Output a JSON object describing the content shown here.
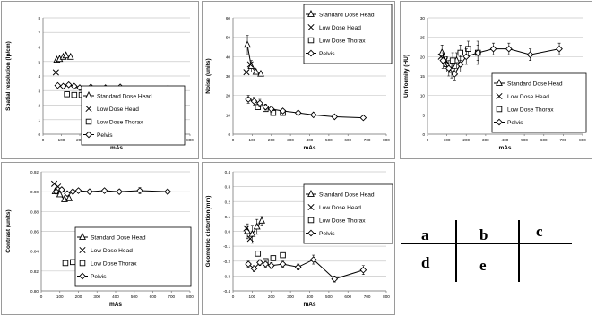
{
  "chart_data": [
    {
      "type": "line",
      "xlabel": "mAs",
      "ylabel": "Spatial resolution (lp/cm)",
      "xlim": [
        0,
        800
      ],
      "ylim": [
        0,
        8
      ],
      "xticks": [
        0,
        100,
        200,
        300,
        400,
        500,
        600,
        700,
        800
      ],
      "yticks": [
        0,
        1,
        2,
        3,
        4,
        5,
        6,
        7,
        8
      ],
      "grid": "horizontal",
      "legend_position": "bottom-right",
      "series": [
        {
          "name": "Standard Dose Head",
          "marker": "triangle",
          "connected": true,
          "x": [
            75,
            90,
            110,
            125,
            150
          ],
          "y": [
            5.1,
            5.15,
            5.3,
            5.4,
            5.3
          ]
        },
        {
          "name": "Low Dose Head",
          "marker": "x",
          "connected": false,
          "x": [
            70
          ],
          "y": [
            4.25
          ]
        },
        {
          "name": "Low Dose Thorax",
          "marker": "square",
          "connected": false,
          "x": [
            130,
            170,
            210,
            260
          ],
          "y": [
            2.75,
            2.7,
            2.7,
            2.7
          ]
        },
        {
          "name": "Pelvis",
          "marker": "diamond",
          "connected": true,
          "x": [
            80,
            110,
            140,
            170,
            200,
            260,
            340,
            420,
            530,
            680
          ],
          "y": [
            3.35,
            3.3,
            3.4,
            3.3,
            3.2,
            3.25,
            3.2,
            3.25,
            3.1,
            3.15
          ]
        }
      ]
    },
    {
      "type": "line",
      "xlabel": "mAs",
      "ylabel": "Noise (units)",
      "xlim": [
        0,
        800
      ],
      "ylim": [
        0,
        60
      ],
      "xticks": [
        0,
        100,
        200,
        300,
        400,
        500,
        600,
        700,
        800
      ],
      "yticks": [
        0,
        10,
        20,
        30,
        40,
        50,
        60
      ],
      "grid": "horizontal",
      "legend_position": "top-right",
      "series": [
        {
          "name": "Standard Dose Head",
          "marker": "triangle",
          "connected": true,
          "x": [
            75,
            95,
            120,
            145
          ],
          "y": [
            46,
            35,
            32,
            31
          ],
          "err": [
            5,
            3,
            0,
            0
          ]
        },
        {
          "name": "Low Dose Head",
          "marker": "x",
          "connected": false,
          "x": [
            70,
            90
          ],
          "y": [
            32,
            36
          ]
        },
        {
          "name": "Low Dose Thorax",
          "marker": "square",
          "connected": false,
          "x": [
            130,
            170,
            210,
            260
          ],
          "y": [
            14,
            13,
            11,
            11
          ]
        },
        {
          "name": "Pelvis",
          "marker": "diamond",
          "connected": true,
          "x": [
            80,
            110,
            140,
            170,
            200,
            260,
            340,
            420,
            530,
            680
          ],
          "y": [
            18,
            17,
            16,
            14,
            13,
            12,
            11,
            10,
            9,
            8.5
          ],
          "err": [
            2,
            2,
            2,
            1.5,
            1.5,
            1,
            1,
            1,
            1,
            1
          ]
        }
      ]
    },
    {
      "type": "line",
      "xlabel": "mAs",
      "ylabel": "Uniformity (HU)",
      "xlim": [
        0,
        800
      ],
      "ylim": [
        0,
        30
      ],
      "xticks": [
        0,
        100,
        200,
        300,
        400,
        500,
        600,
        700,
        800
      ],
      "yticks": [
        0,
        5,
        10,
        15,
        20,
        25,
        30
      ],
      "grid": "horizontal",
      "legend_position": "bottom-right",
      "series": [
        {
          "name": "Standard Dose Head",
          "marker": "triangle",
          "connected": true,
          "x": [
            75,
            100,
            125,
            150
          ],
          "y": [
            21,
            18,
            16.5,
            19
          ],
          "err": [
            2,
            2,
            2,
            2
          ]
        },
        {
          "name": "Low Dose Head",
          "marker": "x",
          "connected": false,
          "x": [
            70,
            90
          ],
          "y": [
            20,
            19
          ]
        },
        {
          "name": "Low Dose Thorax",
          "marker": "square",
          "connected": false,
          "x": [
            130,
            170,
            210,
            260
          ],
          "y": [
            19,
            21,
            22,
            21
          ],
          "err": [
            2,
            2,
            2,
            3
          ]
        },
        {
          "name": "Pelvis",
          "marker": "diamond",
          "connected": true,
          "x": [
            80,
            110,
            140,
            170,
            200,
            260,
            340,
            420,
            530,
            680
          ],
          "y": [
            19,
            17,
            15.5,
            18,
            20,
            21,
            22,
            22,
            20.5,
            22
          ],
          "err": [
            2,
            2,
            1.5,
            2,
            2,
            2,
            1.5,
            1.5,
            1.5,
            1.5
          ]
        }
      ]
    },
    {
      "type": "line",
      "xlabel": "mAs",
      "ylabel": "Contrast (units)",
      "xlim": [
        0,
        800
      ],
      "ylim": [
        0.8,
        0.92
      ],
      "xticks": [
        0,
        100,
        200,
        300,
        400,
        500,
        600,
        700,
        800
      ],
      "yticks": [
        0.8,
        0.82,
        0.84,
        0.86,
        0.88,
        0.9,
        0.92
      ],
      "grid": "horizontal",
      "legend_position": "bottom-right",
      "series": [
        {
          "name": "Standard Dose Head",
          "marker": "triangle",
          "connected": true,
          "x": [
            75,
            100,
            125,
            150
          ],
          "y": [
            0.9,
            0.897,
            0.892,
            0.893
          ]
        },
        {
          "name": "Low Dose Head",
          "marker": "x",
          "connected": false,
          "x": [
            70,
            90
          ],
          "y": [
            0.908,
            0.905
          ]
        },
        {
          "name": "Low Dose Thorax",
          "marker": "square",
          "connected": false,
          "x": [
            130,
            170,
            210,
            260
          ],
          "y": [
            0.828,
            0.829,
            0.829,
            0.829
          ]
        },
        {
          "name": "Pelvis",
          "marker": "diamond",
          "connected": true,
          "x": [
            80,
            110,
            140,
            170,
            200,
            260,
            340,
            420,
            530,
            680
          ],
          "y": [
            0.9,
            0.902,
            0.898,
            0.9,
            0.901,
            0.9,
            0.901,
            0.9,
            0.901,
            0.9
          ],
          "err": [
            0.002,
            0.002,
            0.002,
            0.002,
            0.002,
            0.002,
            0.002,
            0.002,
            0.003,
            0.002
          ]
        }
      ]
    },
    {
      "type": "line",
      "xlabel": "mAs",
      "ylabel": "Geometric distortion(mm)",
      "xlim": [
        0,
        800
      ],
      "ylim": [
        -0.4,
        0.4
      ],
      "xticks": [
        0,
        100,
        200,
        300,
        400,
        500,
        600,
        700,
        800
      ],
      "yticks": [
        -0.4,
        -0.3,
        -0.2,
        -0.1,
        0,
        0.1,
        0.2,
        0.3,
        0.4
      ],
      "grid": "horizontal",
      "legend_position": "top-right",
      "series": [
        {
          "name": "Standard Dose Head",
          "marker": "triangle",
          "connected": true,
          "x": [
            75,
            100,
            125,
            150
          ],
          "y": [
            0.0,
            -0.02,
            0.03,
            0.07
          ],
          "err": [
            0.05,
            0.06,
            0.05,
            0.03
          ]
        },
        {
          "name": "Low Dose Head",
          "marker": "x",
          "connected": false,
          "x": [
            70,
            90
          ],
          "y": [
            0.02,
            -0.05
          ]
        },
        {
          "name": "Low Dose Thorax",
          "marker": "square",
          "connected": false,
          "x": [
            130,
            170,
            210,
            260
          ],
          "y": [
            -0.15,
            -0.2,
            -0.18,
            -0.16
          ]
        },
        {
          "name": "Pelvis",
          "marker": "diamond",
          "connected": true,
          "x": [
            80,
            110,
            140,
            170,
            200,
            260,
            340,
            420,
            530,
            680
          ],
          "y": [
            -0.22,
            -0.25,
            -0.21,
            -0.22,
            -0.23,
            -0.22,
            -0.24,
            -0.19,
            -0.32,
            -0.26
          ],
          "err": [
            0.02,
            0.02,
            0.02,
            0.02,
            0.02,
            0.02,
            0.02,
            0.03,
            0.02,
            0.03
          ]
        }
      ]
    }
  ],
  "panel_key": {
    "labels": [
      "a",
      "b",
      "c",
      "d",
      "e"
    ]
  }
}
